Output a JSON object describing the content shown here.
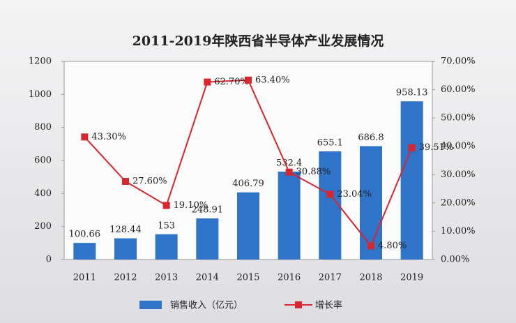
{
  "chart_data": {
    "type": "bar",
    "title": "2011-2019年陕西省半导体产业发展情况",
    "categories": [
      "2011",
      "2012",
      "2013",
      "2014",
      "2015",
      "2016",
      "2017",
      "2018",
      "2019"
    ],
    "series": [
      {
        "name": "销售收入（亿元）",
        "type": "bar",
        "color": "#2f74c8",
        "values": [
          100.66,
          128.44,
          153,
          248.91,
          406.79,
          532.4,
          655.1,
          686.8,
          958.13
        ]
      },
      {
        "name": "增长率",
        "type": "line",
        "axis": "y2",
        "color": "#d8262f",
        "values": [
          43.3,
          27.6,
          19.1,
          62.7,
          63.4,
          30.88,
          23.04,
          4.8,
          39.51
        ],
        "value_labels": [
          "43.30%",
          "27.60%",
          "19.10%",
          "62.70%",
          "63.40%",
          "30.88%",
          "23.04%",
          "4.80%",
          "39.51%"
        ]
      }
    ],
    "ylim": [
      0,
      1200
    ],
    "yticks": [
      0,
      200,
      400,
      600,
      800,
      1000,
      1200
    ],
    "y2lim": [
      0,
      70
    ],
    "y2ticks": [
      {
        "value": 0,
        "label": "0.00%"
      },
      {
        "value": 10,
        "label": "10.00%"
      },
      {
        "value": 20,
        "label": "20.00%"
      },
      {
        "value": 30,
        "label": "30.00%"
      },
      {
        "value": 40,
        "label": "40.00%"
      },
      {
        "value": 50,
        "label": "50.00%"
      },
      {
        "value": 60,
        "label": "60.00%"
      },
      {
        "value": 70,
        "label": "70.00%"
      }
    ],
    "legend": "bottom"
  }
}
